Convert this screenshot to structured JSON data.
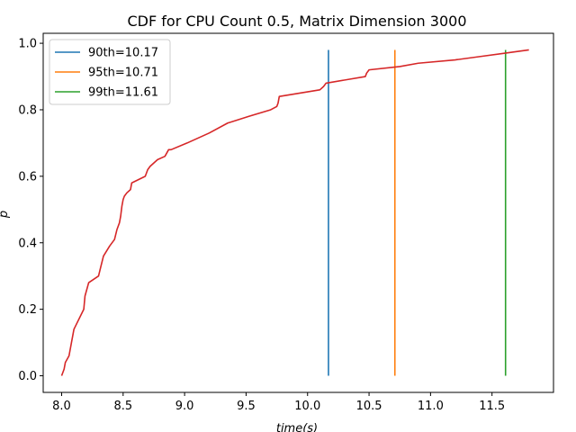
{
  "chart_data": {
    "type": "line",
    "title": "CDF for CPU Count 0.5, Matrix Dimension 3000",
    "xlabel": "time(s)",
    "ylabel": "p",
    "xlim": [
      7.85,
      12.0
    ],
    "ylim": [
      -0.05,
      1.03
    ],
    "xticks": [
      8.0,
      8.5,
      9.0,
      9.5,
      10.0,
      10.5,
      11.0,
      11.5
    ],
    "xtick_labels": [
      "8.0",
      "8.5",
      "9.0",
      "9.5",
      "10.0",
      "10.5",
      "11.0",
      "11.5"
    ],
    "yticks": [
      0.0,
      0.2,
      0.4,
      0.6,
      0.8,
      1.0
    ],
    "ytick_labels": [
      "0.0",
      "0.2",
      "0.4",
      "0.6",
      "0.8",
      "1.0"
    ],
    "grid": false,
    "legend_position": "top-left",
    "series": [
      {
        "name": "90th=10.17",
        "color": "#1f77b4",
        "kind": "vline",
        "x": [
          10.17,
          10.17
        ],
        "y": [
          0.0,
          0.98
        ]
      },
      {
        "name": "95th=10.71",
        "color": "#ff7f0e",
        "kind": "vline",
        "x": [
          10.71,
          10.71
        ],
        "y": [
          0.0,
          0.98
        ]
      },
      {
        "name": "99th=11.61",
        "color": "#2ca02c",
        "kind": "vline",
        "x": [
          11.61,
          11.61
        ],
        "y": [
          0.0,
          0.98
        ]
      },
      {
        "name": "",
        "color": "#d62728",
        "kind": "line",
        "x": [
          8.0,
          8.02,
          8.03,
          8.06,
          8.08,
          8.1,
          8.18,
          8.19,
          8.22,
          8.3,
          8.32,
          8.34,
          8.39,
          8.43,
          8.45,
          8.47,
          8.48,
          8.49,
          8.5,
          8.51,
          8.53,
          8.56,
          8.57,
          8.68,
          8.7,
          8.72,
          8.78,
          8.84,
          8.87,
          8.89,
          9.02,
          9.2,
          9.35,
          9.52,
          9.7,
          9.75,
          9.76,
          9.77,
          10.1,
          10.13,
          10.15,
          10.47,
          10.48,
          10.5,
          10.75,
          10.9,
          11.2,
          11.4,
          11.6,
          11.8
        ],
        "y": [
          0.0,
          0.02,
          0.04,
          0.06,
          0.1,
          0.14,
          0.2,
          0.24,
          0.28,
          0.3,
          0.33,
          0.36,
          0.39,
          0.41,
          0.44,
          0.46,
          0.48,
          0.51,
          0.53,
          0.54,
          0.55,
          0.56,
          0.58,
          0.6,
          0.62,
          0.63,
          0.65,
          0.66,
          0.68,
          0.68,
          0.7,
          0.73,
          0.76,
          0.78,
          0.8,
          0.81,
          0.82,
          0.84,
          0.86,
          0.87,
          0.88,
          0.9,
          0.91,
          0.92,
          0.93,
          0.94,
          0.95,
          0.96,
          0.97,
          0.98
        ]
      }
    ]
  }
}
